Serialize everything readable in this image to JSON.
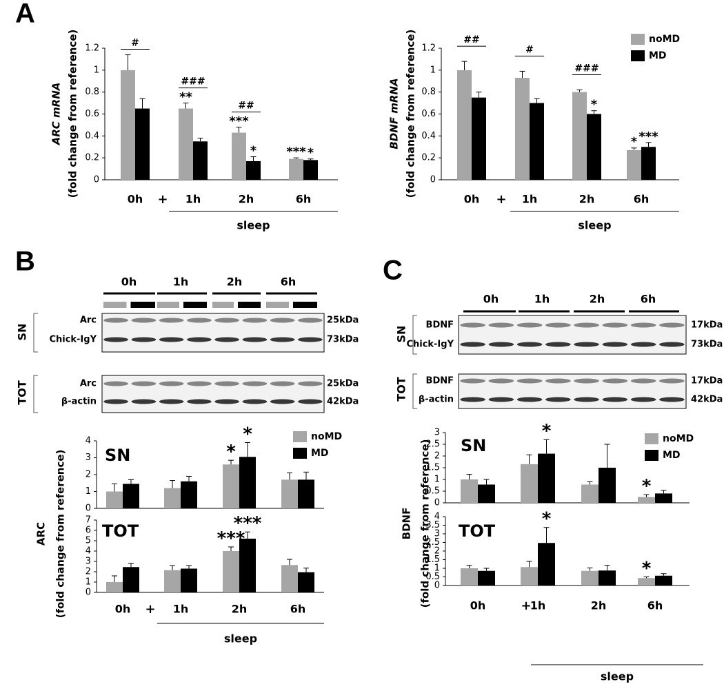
{
  "panels": [
    "A",
    "B",
    "C"
  ],
  "chart_data": [
    {
      "type": "bar",
      "ylabel": [
        "ARC mRNA",
        "(fold change from reference)"
      ],
      "categories": [
        "0h",
        "1h",
        "2h",
        "6h"
      ],
      "ylim": [
        0,
        1.2
      ],
      "yticks": [
        0,
        0.2,
        0.4,
        0.6,
        0.8,
        1,
        1.2
      ],
      "separator": "+",
      "group_label": "sleep",
      "hashes": [
        "#",
        "###",
        "##",
        null
      ],
      "series": [
        {
          "name": "noMD",
          "color": "#a6a6a6",
          "values": [
            1,
            0.65,
            0.43,
            0.19
          ],
          "errors": [
            0.14,
            0.05,
            0.05,
            0.01
          ],
          "stars": [
            null,
            "**",
            "***",
            "***"
          ]
        },
        {
          "name": "MD",
          "color": "#000000",
          "values": [
            0.65,
            0.35,
            0.17,
            0.18
          ],
          "errors": [
            0.09,
            0.03,
            0.04,
            0.01
          ],
          "stars": [
            null,
            null,
            "*",
            "*"
          ]
        }
      ]
    },
    {
      "type": "bar",
      "ylabel": [
        "BDNF mRNA",
        "(fold change from reference)"
      ],
      "categories": [
        "0h",
        "1h",
        "2h",
        "6h"
      ],
      "ylim": [
        0,
        1.2
      ],
      "yticks": [
        0,
        0.2,
        0.4,
        0.6,
        0.8,
        1,
        1.2
      ],
      "separator": "+",
      "group_label": "sleep",
      "legend": "upper right",
      "hashes": [
        "##",
        "#",
        "###",
        null
      ],
      "series": [
        {
          "name": "noMD",
          "color": "#a6a6a6",
          "values": [
            1,
            0.93,
            0.8,
            0.27
          ],
          "errors": [
            0.08,
            0.06,
            0.02,
            0.02
          ],
          "stars": [
            null,
            null,
            null,
            "*"
          ]
        },
        {
          "name": "MD",
          "color": "#000000",
          "values": [
            0.75,
            0.7,
            0.6,
            0.3
          ],
          "errors": [
            0.05,
            0.04,
            0.03,
            0.04
          ],
          "stars": [
            null,
            null,
            "*",
            "***"
          ]
        }
      ]
    },
    {
      "type": "bar",
      "title": "SN",
      "ylabel": [
        "ARC",
        "(fold change from reference)"
      ],
      "legend": "upper right",
      "ylim": [
        0,
        4
      ],
      "yticks": [
        0,
        1,
        2,
        3,
        4
      ],
      "series": [
        {
          "name": "noMD",
          "color": "#a6a6a6",
          "values": [
            1,
            1.2,
            2.6,
            1.7
          ],
          "errors": [
            0.45,
            0.45,
            0.25,
            0.4
          ],
          "stars": [
            null,
            null,
            "*",
            null
          ]
        },
        {
          "name": "MD",
          "color": "#000000",
          "values": [
            1.45,
            1.6,
            3.05,
            1.7
          ],
          "errors": [
            0.25,
            0.3,
            0.85,
            0.45
          ],
          "stars": [
            null,
            null,
            "*",
            null
          ]
        }
      ]
    },
    {
      "type": "bar",
      "title": "TOT",
      "categories": [
        "0h",
        "1h",
        "2h",
        "6h"
      ],
      "separator": "+",
      "group_label": "sleep",
      "ylim": [
        0,
        7
      ],
      "yticks": [
        0,
        1,
        2,
        3,
        4,
        5,
        6,
        7
      ],
      "series": [
        {
          "name": "noMD",
          "color": "#a6a6a6",
          "values": [
            1,
            2.15,
            4,
            2.65
          ],
          "errors": [
            0.6,
            0.45,
            0.4,
            0.55
          ],
          "stars": [
            null,
            null,
            "***",
            null
          ]
        },
        {
          "name": "MD",
          "color": "#000000",
          "values": [
            2.45,
            2.3,
            5.2,
            1.95
          ],
          "errors": [
            0.35,
            0.3,
            0.65,
            0.4
          ],
          "stars": [
            null,
            null,
            "***",
            null
          ]
        }
      ]
    },
    {
      "type": "bar",
      "title": "SN",
      "ylabel": [
        "BDNF",
        "(fold change from reference)"
      ],
      "legend": "upper right",
      "ylim": [
        0,
        3
      ],
      "yticks": [
        0,
        0.5,
        1,
        1.5,
        2,
        2.5,
        3
      ],
      "series": [
        {
          "name": "noMD",
          "color": "#a6a6a6",
          "values": [
            1,
            1.65,
            0.78,
            0.25
          ],
          "errors": [
            0.22,
            0.4,
            0.12,
            0.1
          ],
          "stars": [
            null,
            null,
            null,
            "*"
          ]
        },
        {
          "name": "MD",
          "color": "#000000",
          "values": [
            0.78,
            2.1,
            1.5,
            0.4
          ],
          "errors": [
            0.22,
            0.6,
            1,
            0.13
          ],
          "stars": [
            null,
            "*",
            null,
            null
          ]
        }
      ]
    },
    {
      "type": "bar",
      "title": "TOT",
      "categories": [
        "0h",
        "1h",
        "2h",
        "6h"
      ],
      "separator": "+",
      "group_label": "sleep",
      "ylim": [
        0,
        4
      ],
      "yticks": [
        0,
        0.5,
        1,
        1.5,
        2,
        2.5,
        3,
        3.5,
        4
      ],
      "series": [
        {
          "name": "noMD",
          "color": "#a6a6a6",
          "values": [
            1,
            1.07,
            0.85,
            0.43
          ],
          "errors": [
            0.17,
            0.33,
            0.17,
            0.07
          ],
          "stars": [
            null,
            null,
            null,
            "*"
          ]
        },
        {
          "name": "MD",
          "color": "#000000",
          "values": [
            0.85,
            2.47,
            0.87,
            0.57
          ],
          "errors": [
            0.15,
            0.9,
            0.3,
            0.12
          ],
          "stars": [
            null,
            "*",
            null,
            null
          ]
        }
      ]
    }
  ],
  "blots": [
    {
      "timepoints": [
        "0h",
        "1h",
        "2h",
        "6h"
      ],
      "groups": [
        {
          "name": "SN",
          "rows": [
            {
              "protein": "Arc",
              "size": "25kDa"
            },
            {
              "protein": "Chick-IgY",
              "size": "73kDa"
            }
          ]
        },
        {
          "name": "TOT",
          "rows": [
            {
              "protein": "Arc",
              "size": "25kDa"
            },
            {
              "protein": "β-actin",
              "size": "42kDa"
            }
          ]
        }
      ]
    },
    {
      "timepoints": [
        "0h",
        "1h",
        "2h",
        "6h"
      ],
      "groups": [
        {
          "name": "SN",
          "rows": [
            {
              "protein": "BDNF",
              "size": "17kDa"
            },
            {
              "protein": "Chick-IgY",
              "size": "73kDa"
            }
          ]
        },
        {
          "name": "TOT",
          "rows": [
            {
              "protein": "BDNF",
              "size": "17kDa"
            },
            {
              "protein": "β-actin",
              "size": "42kDa"
            }
          ]
        }
      ]
    }
  ]
}
